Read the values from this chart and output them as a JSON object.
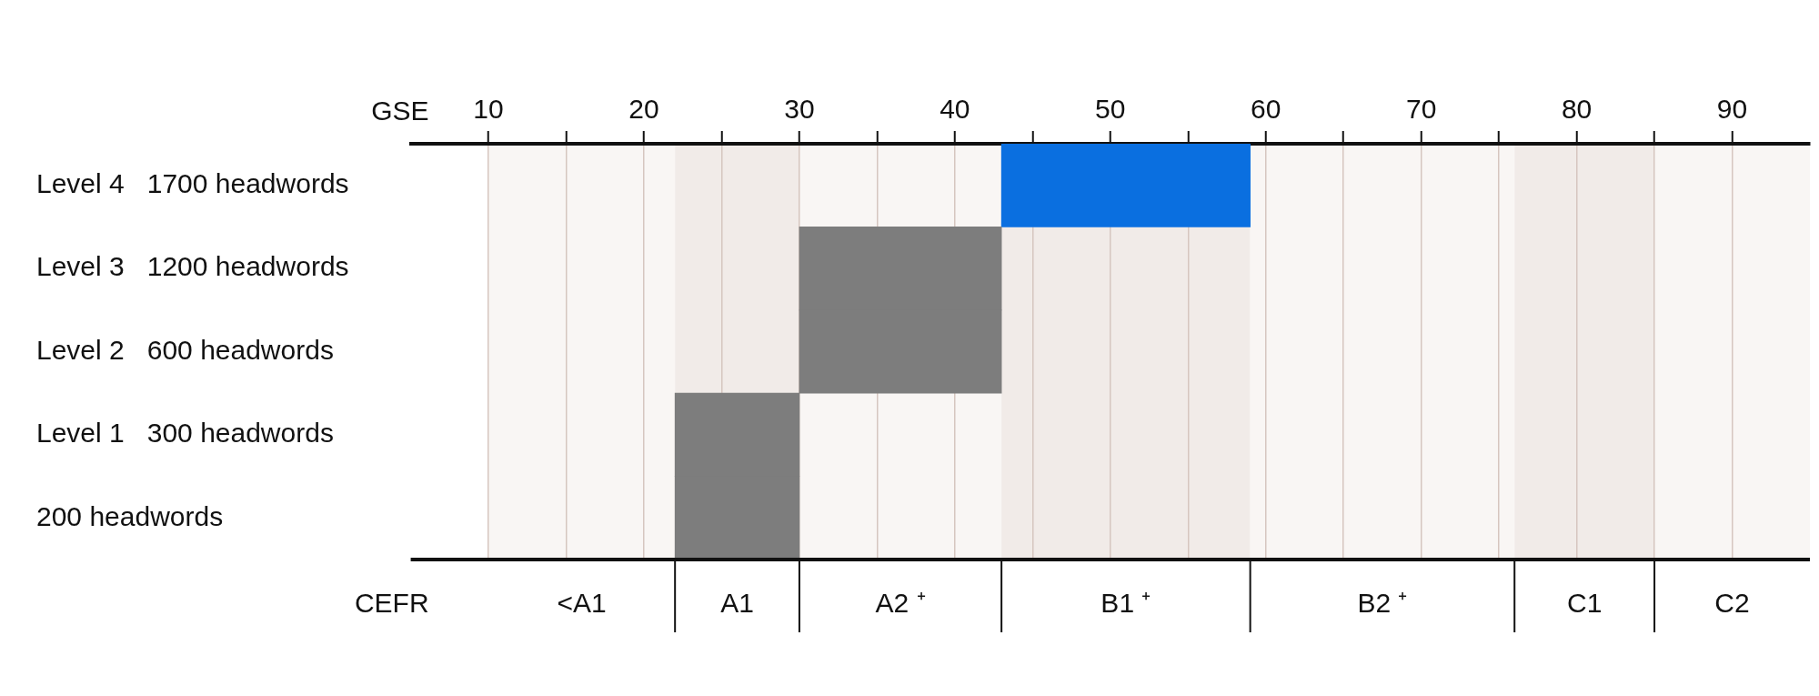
{
  "chart_data": {
    "type": "bar",
    "orientation": "horizontal",
    "categories": [
      "Level 4   1700 headwords",
      "Level 3   1200 headwords",
      "Level 2   600 headwords",
      "Level 1   300 headwords",
      "200 headwords"
    ],
    "base": [
      43,
      30,
      30,
      22,
      22
    ],
    "values": [
      16,
      13,
      13,
      8,
      8
    ],
    "colors": [
      "#0a6fe0",
      "#7d7d7d",
      "#7d7d7d",
      "#7d7d7d",
      "#7d7d7d"
    ],
    "xlabel": "GSE",
    "xlim": [
      5,
      95
    ],
    "xticks": [
      10,
      {
        "value": 15,
        "label": null
      },
      20,
      {
        "value": 25,
        "label": null
      },
      30,
      {
        "value": 35,
        "label": null
      },
      40,
      {
        "value": 45,
        "label": null
      },
      50,
      {
        "value": 55,
        "label": null
      },
      60,
      {
        "value": 65,
        "label": null
      },
      70,
      {
        "value": 75,
        "label": null
      },
      80,
      {
        "value": 85,
        "label": null
      },
      90
    ],
    "bands": [
      {
        "axis": "x",
        "from": 10,
        "to": 22,
        "label": "<A1",
        "color": "#f9f6f4"
      },
      {
        "axis": "x",
        "from": 22,
        "to": 30,
        "label": "A1",
        "color": "#f1ebe8"
      },
      {
        "axis": "x",
        "from": 30,
        "to": 43,
        "label": "A2 ⁺",
        "color": "#f9f6f4"
      },
      {
        "axis": "x",
        "from": 43,
        "to": 59,
        "label": "B1 ⁺",
        "color": "#f1ebe8"
      },
      {
        "axis": "x",
        "from": 59,
        "to": 76,
        "label": "B2 ⁺",
        "color": "#f9f6f4"
      },
      {
        "axis": "x",
        "from": 76,
        "to": 85,
        "label": "C1",
        "color": "#f1ebe8"
      },
      {
        "axis": "x",
        "from": 85,
        "to": 95,
        "label": "C2",
        "color": "#f9f6f4"
      }
    ],
    "annotations": [
      "CEFR"
    ],
    "grid": "x",
    "legend": false
  }
}
